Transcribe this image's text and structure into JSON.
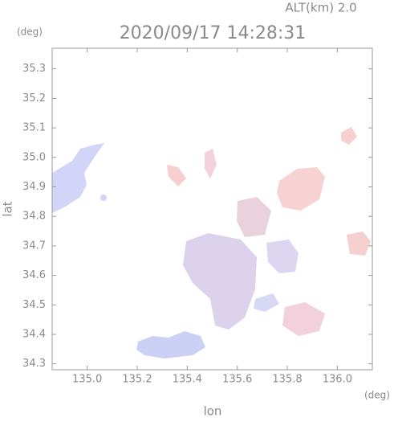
{
  "chart_data": {
    "type": "map",
    "title": "2020/09/17 14:28:31",
    "annotation": "ALT(km) 2.0",
    "x_unit": "(deg)",
    "y_unit": "(deg)",
    "x_label": "lon",
    "y_label": "lat",
    "xlim": [
      134.86,
      136.14
    ],
    "xticks": [
      {
        "value": 135,
        "label": "135.0"
      },
      135.2,
      135.4,
      135.6,
      135.8,
      {
        "value": 136,
        "label": "136.0"
      }
    ],
    "ylim": [
      34.28,
      35.37
    ],
    "yticks": [
      34.3,
      34.4,
      34.5,
      34.6,
      34.7,
      34.8,
      34.9,
      {
        "value": 35,
        "label": "35.0"
      },
      35.1,
      35.2,
      35.3
    ],
    "grid": false
  }
}
